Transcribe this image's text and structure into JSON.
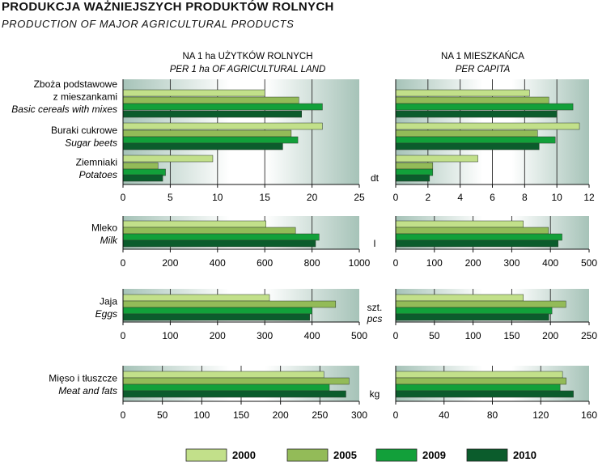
{
  "title": "PRODUKCJA WAŻNIEJSZYCH PRODUKTÓW ROLNYCH",
  "subtitle": "PRODUCTION OF MAJOR AGRICULTURAL PRODUCTS",
  "colors": {
    "2000": "#c2e08a",
    "2005": "#93bb58",
    "2009": "#12a03a",
    "2010": "#0b5c2c",
    "panel_dark": "#a6c3b8",
    "panel_light": "#ffffff",
    "grid": "#2a2a2a"
  },
  "chart_data": {
    "type": "bar",
    "orientation": "horizontal",
    "legend": {
      "placement": "bottom",
      "items": [
        {
          "key": "2000",
          "label": "2000"
        },
        {
          "key": "2005",
          "label": "2005"
        },
        {
          "key": "2009",
          "label": "2009"
        },
        {
          "key": "2010",
          "label": "2010"
        }
      ]
    },
    "column_headers": [
      {
        "pl": "NA 1 ha UŻYTKÓW ROLNYCH",
        "en": "PER 1 ha OF AGRICULTURAL LAND"
      },
      {
        "pl": "NA 1 MIESZKAŃCA",
        "en": "PER CAPITA"
      }
    ],
    "groups": [
      {
        "unit": "dt",
        "unit2": "",
        "categories": [
          {
            "pl": [
              "Zboża podstawowe",
              "z mieszankami"
            ],
            "en": [
              "Basic cereals with mixes"
            ],
            "left": {
              "2000": 15.0,
              "2005": 18.6,
              "2009": 21.1,
              "2010": 18.9
            },
            "right": {
              "2000": 8.3,
              "2005": 9.5,
              "2009": 11.0,
              "2010": 10.0
            }
          },
          {
            "pl": [
              "Buraki cukrowe"
            ],
            "en": [
              "Sugar beets"
            ],
            "left": {
              "2000": 21.1,
              "2005": 17.8,
              "2009": 18.5,
              "2010": 16.9
            },
            "right": {
              "2000": 11.4,
              "2005": 8.8,
              "2009": 9.9,
              "2010": 8.9
            }
          },
          {
            "pl": [
              "Ziemniaki"
            ],
            "en": [
              "Potatoes"
            ],
            "left": {
              "2000": 9.5,
              "2005": 3.7,
              "2009": 4.5,
              "2010": 4.2
            },
            "right": {
              "2000": 5.1,
              "2005": 2.3,
              "2009": 2.3,
              "2010": 2.1
            }
          }
        ],
        "left_axis": {
          "min": 0,
          "max": 25,
          "ticks": [
            0,
            5,
            10,
            15,
            20,
            25
          ]
        },
        "right_axis": {
          "min": 0,
          "max": 12,
          "ticks": [
            0,
            2,
            4,
            6,
            8,
            10,
            12
          ]
        }
      },
      {
        "unit": "l",
        "unit2": "",
        "categories": [
          {
            "pl": [
              "Mleko"
            ],
            "en": [
              "Milk"
            ],
            "left": {
              "2000": 605,
              "2005": 730,
              "2009": 830,
              "2010": 815
            },
            "right": {
              "2000": 330,
              "2005": 395,
              "2009": 430,
              "2010": 420
            }
          }
        ],
        "left_axis": {
          "min": 0,
          "max": 1000,
          "ticks": [
            0,
            200,
            400,
            600,
            800,
            1000
          ]
        },
        "right_axis": {
          "min": 0,
          "max": 500,
          "ticks": [
            0,
            100,
            200,
            300,
            400,
            500
          ]
        }
      },
      {
        "unit": "szt.",
        "unit2": "pcs",
        "categories": [
          {
            "pl": [
              "Jaja"
            ],
            "en": [
              "Eggs"
            ],
            "left": {
              "2000": 310,
              "2005": 450,
              "2009": 400,
              "2010": 395
            },
            "right": {
              "2000": 165,
              "2005": 220,
              "2009": 202,
              "2010": 198
            }
          }
        ],
        "left_axis": {
          "min": 0,
          "max": 500,
          "ticks": [
            0,
            100,
            200,
            300,
            400,
            500
          ]
        },
        "right_axis": {
          "min": 0,
          "max": 250,
          "ticks": [
            0,
            50,
            100,
            150,
            200,
            250
          ]
        }
      },
      {
        "unit": "kg",
        "unit2": "",
        "categories": [
          {
            "pl": [
              "Mięso i tłuszcze"
            ],
            "en": [
              "Meat and fats"
            ],
            "left": {
              "2000": 255,
              "2005": 287,
              "2009": 262,
              "2010": 283
            },
            "right": {
              "2000": 138,
              "2005": 141,
              "2009": 136,
              "2010": 147
            }
          }
        ],
        "left_axis": {
          "min": 0,
          "max": 300,
          "ticks": [
            0,
            50,
            100,
            150,
            200,
            250,
            300
          ]
        },
        "right_axis": {
          "min": 0,
          "max": 160,
          "ticks": [
            0,
            40,
            80,
            120,
            160
          ]
        }
      }
    ]
  }
}
